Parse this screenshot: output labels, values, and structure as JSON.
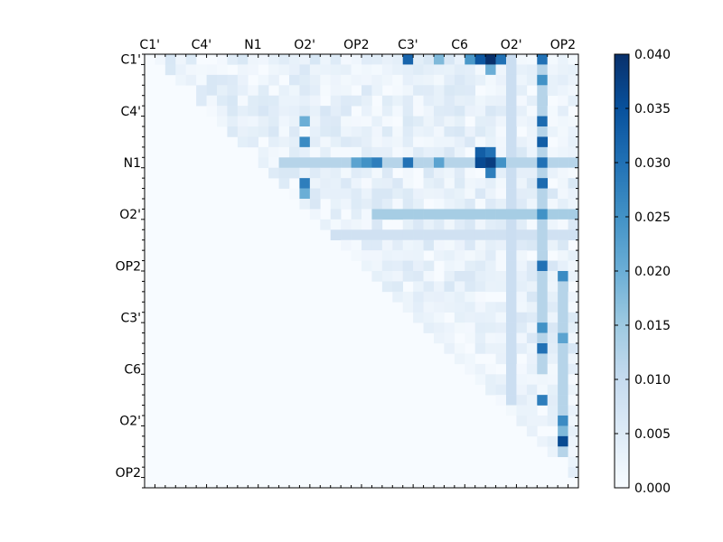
{
  "chart_data": {
    "type": "heatmap",
    "title": "",
    "colormap": "Blues",
    "colors": {
      "low": "#f7fbff",
      "high": "#08306b",
      "frame": "#000000"
    },
    "grid": false,
    "triangle": "upper",
    "size": 42,
    "top_tick_labels": [
      "C1'",
      "C4'",
      "N1",
      "O2'",
      "OP2",
      "C3'",
      "C6",
      "O2'",
      "OP2"
    ],
    "left_tick_labels": [
      "C1'",
      "C4'",
      "N1",
      "O2'",
      "OP2",
      "C3'",
      "C6",
      "O2'",
      "OP2"
    ],
    "label_step": 5,
    "colorbar": {
      "min": 0.0,
      "max": 0.04,
      "ticks": [
        "0.000",
        "0.005",
        "0.010",
        "0.015",
        "0.020",
        "0.025",
        "0.030",
        "0.035",
        "0.040"
      ]
    },
    "features": {
      "bands": [
        {
          "row": 10,
          "c0": 13,
          "c1": 41,
          "v": 0.012
        },
        {
          "row": 15,
          "c0": 22,
          "c1": 41,
          "v": 0.014
        },
        {
          "row": 17,
          "c0": 18,
          "c1": 41,
          "v": 0.008
        },
        {
          "col": 38,
          "r0": 0,
          "r1": 30,
          "v": 0.012
        },
        {
          "col": 35,
          "r0": 0,
          "r1": 33,
          "v": 0.009
        },
        {
          "col": 40,
          "r0": 21,
          "r1": 38,
          "v": 0.012
        }
      ],
      "hotspots": [
        {
          "r": 0,
          "c": 25,
          "v": 0.032
        },
        {
          "r": 0,
          "c": 32,
          "v": 0.034
        },
        {
          "r": 0,
          "c": 33,
          "v": 0.04
        },
        {
          "r": 0,
          "c": 34,
          "v": 0.03
        },
        {
          "r": 0,
          "c": 31,
          "v": 0.024
        },
        {
          "r": 0,
          "c": 28,
          "v": 0.018
        },
        {
          "r": 1,
          "c": 33,
          "v": 0.02
        },
        {
          "r": 0,
          "c": 38,
          "v": 0.03
        },
        {
          "r": 2,
          "c": 38,
          "v": 0.025
        },
        {
          "r": 6,
          "c": 38,
          "v": 0.031
        },
        {
          "r": 8,
          "c": 38,
          "v": 0.033
        },
        {
          "r": 10,
          "c": 38,
          "v": 0.03
        },
        {
          "r": 12,
          "c": 38,
          "v": 0.031
        },
        {
          "r": 10,
          "c": 25,
          "v": 0.03
        },
        {
          "r": 10,
          "c": 28,
          "v": 0.022
        },
        {
          "r": 10,
          "c": 32,
          "v": 0.036
        },
        {
          "r": 10,
          "c": 33,
          "v": 0.038
        },
        {
          "r": 9,
          "c": 32,
          "v": 0.033
        },
        {
          "r": 9,
          "c": 33,
          "v": 0.03
        },
        {
          "r": 11,
          "c": 33,
          "v": 0.028
        },
        {
          "r": 10,
          "c": 34,
          "v": 0.025
        },
        {
          "r": 10,
          "c": 22,
          "v": 0.028
        },
        {
          "r": 10,
          "c": 21,
          "v": 0.025
        },
        {
          "r": 8,
          "c": 15,
          "v": 0.026
        },
        {
          "r": 12,
          "c": 15,
          "v": 0.028
        },
        {
          "r": 10,
          "c": 20,
          "v": 0.022
        },
        {
          "r": 13,
          "c": 15,
          "v": 0.02
        },
        {
          "r": 6,
          "c": 15,
          "v": 0.02
        },
        {
          "r": 15,
          "c": 38,
          "v": 0.025
        },
        {
          "r": 20,
          "c": 38,
          "v": 0.03
        },
        {
          "r": 26,
          "c": 38,
          "v": 0.025
        },
        {
          "r": 28,
          "c": 38,
          "v": 0.03
        },
        {
          "r": 33,
          "c": 38,
          "v": 0.028
        },
        {
          "r": 21,
          "c": 40,
          "v": 0.026
        },
        {
          "r": 27,
          "c": 40,
          "v": 0.022
        },
        {
          "r": 35,
          "c": 40,
          "v": 0.026
        },
        {
          "r": 37,
          "c": 40,
          "v": 0.036
        },
        {
          "r": 36,
          "c": 40,
          "v": 0.018
        }
      ]
    }
  }
}
